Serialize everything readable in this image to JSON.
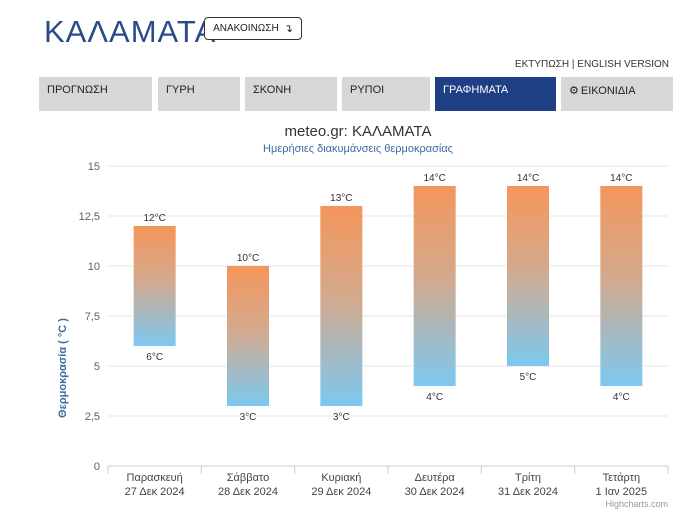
{
  "header": {
    "city": "ΚΑΛΑΜΑΤΑ",
    "announce_label": "ΑΝΑΚΟΙΝΩΣΗ",
    "announce_icon": "arrow-down-icon",
    "print_link": "ΕΚΤΥΠΩΣΗ",
    "link_separator": " | ",
    "english_link": "ENGLISH VERSION"
  },
  "tabs": [
    {
      "label": "ΠΡΟΓΝΩΣΗ",
      "active": false
    },
    {
      "label": "ΓΥΡΗ",
      "active": false
    },
    {
      "label": "ΣΚΟΝΗ",
      "active": false
    },
    {
      "label": "ΡΥΠΟΙ",
      "active": false
    },
    {
      "label": "ΓΡΑΦΗΜΑΤΑ",
      "active": true
    },
    {
      "label": "ΕΙΚΟΝΙΔΙΑ",
      "active": false,
      "icon": "gear-icon"
    }
  ],
  "colors": {
    "accent": "#1f3f85",
    "bar_top": "#f4965a",
    "bar_bottom": "#7cc8f0",
    "subtitle": "#3d6ca6"
  },
  "chart_data": {
    "type": "columnrange",
    "title": "meteo.gr: ΚΑΛΑΜΑΤΑ",
    "subtitle": "Ημερήσιες διακυμάνσεις θερμοκρασίας",
    "ylabel": "Θερμοκρασία ( °C )",
    "ylim": [
      0,
      15
    ],
    "yticks": [
      "0",
      "2,5",
      "5",
      "7,5",
      "10",
      "12,5",
      "15"
    ],
    "categories": [
      {
        "day": "Παρασκευή",
        "date": "27 Δεκ 2024"
      },
      {
        "day": "Σάββατο",
        "date": "28 Δεκ 2024"
      },
      {
        "day": "Κυριακή",
        "date": "29 Δεκ 2024"
      },
      {
        "day": "Δευτέρα",
        "date": "30 Δεκ 2024"
      },
      {
        "day": "Τρίτη",
        "date": "31 Δεκ 2024"
      },
      {
        "day": "Τετάρτη",
        "date": "1 Ιαν 2025"
      }
    ],
    "low": [
      6,
      3,
      3,
      4,
      5,
      4
    ],
    "high": [
      12,
      10,
      13,
      14,
      14,
      14
    ],
    "low_labels": [
      "6°C",
      "3°C",
      "3°C",
      "4°C",
      "5°C",
      "4°C"
    ],
    "high_labels": [
      "12°C",
      "10°C",
      "13°C",
      "14°C",
      "14°C",
      "14°C"
    ],
    "grid": true,
    "credits": "Highcharts.com"
  }
}
